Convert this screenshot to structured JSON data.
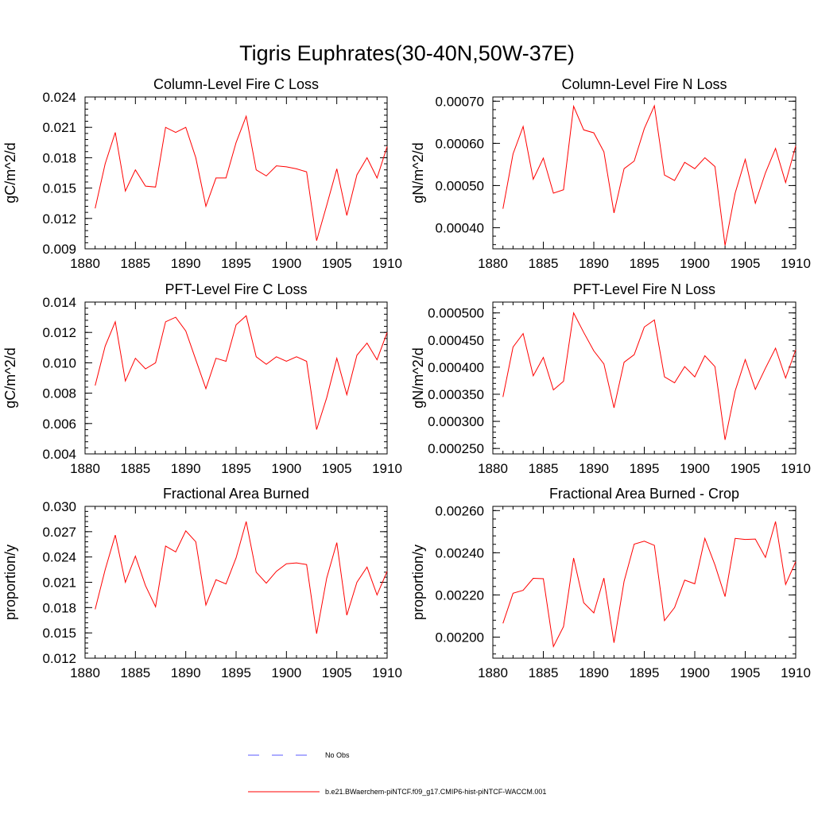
{
  "figure": {
    "title": "Tigris Euphrates(30-40N,50W-37E)"
  },
  "legend": {
    "entries": [
      {
        "label": "No Obs",
        "color": "#5a5aff",
        "style": "dashed"
      },
      {
        "label": "b.e21.BWaerchem-piNTCF.f09_g17.CMIP6-hist-piNTCF-WACCM.001",
        "color": "#ff0000",
        "style": "solid"
      }
    ]
  },
  "chart_data": [
    {
      "type": "line",
      "title": "Column-Level Fire C Loss",
      "ylabel": "gC/m^2/d",
      "xlim": [
        1880,
        1910
      ],
      "ylim": [
        0.009,
        0.024
      ],
      "xticks": [
        "1880",
        "1885",
        "1890",
        "1895",
        "1900",
        "1905",
        "1910"
      ],
      "yticks": [
        "0.009",
        "0.012",
        "0.015",
        "0.018",
        "0.021",
        "0.024"
      ],
      "series": [
        {
          "color": "#ff0000",
          "x": [
            1881,
            1882,
            1883,
            1884,
            1885,
            1886,
            1887,
            1888,
            1889,
            1890,
            1891,
            1892,
            1893,
            1894,
            1895,
            1896,
            1897,
            1898,
            1899,
            1900,
            1901,
            1902,
            1903,
            1904,
            1905,
            1906,
            1907,
            1908,
            1909,
            1910
          ],
          "values": [
            0.013,
            0.0174,
            0.0205,
            0.0147,
            0.0168,
            0.0152,
            0.0151,
            0.021,
            0.0205,
            0.021,
            0.018,
            0.0132,
            0.016,
            0.016,
            0.0195,
            0.0221,
            0.0168,
            0.0162,
            0.0172,
            0.0171,
            0.0169,
            0.0166,
            0.0098,
            0.0133,
            0.0169,
            0.0123,
            0.0163,
            0.018,
            0.016,
            0.0191
          ]
        }
      ]
    },
    {
      "type": "line",
      "title": "Column-Level Fire N Loss",
      "ylabel": "gN/m^2/d",
      "xlim": [
        1880,
        1910
      ],
      "ylim": [
        0.00035,
        0.00071
      ],
      "xticks": [
        "1880",
        "1885",
        "1890",
        "1895",
        "1900",
        "1905",
        "1910"
      ],
      "yticks": [
        "0.00040",
        "0.00050",
        "0.00060",
        "0.00070"
      ],
      "series": [
        {
          "color": "#ff0000",
          "x": [
            1881,
            1882,
            1883,
            1884,
            1885,
            1886,
            1887,
            1888,
            1889,
            1890,
            1891,
            1892,
            1893,
            1894,
            1895,
            1896,
            1897,
            1898,
            1899,
            1900,
            1901,
            1902,
            1903,
            1904,
            1905,
            1906,
            1907,
            1908,
            1909,
            1910
          ],
          "values": [
            0.000445,
            0.000575,
            0.00064,
            0.000515,
            0.000565,
            0.000482,
            0.00049,
            0.000688,
            0.000632,
            0.000625,
            0.00058,
            0.000435,
            0.00054,
            0.000558,
            0.000635,
            0.000689,
            0.000525,
            0.000512,
            0.000555,
            0.00054,
            0.000566,
            0.000545,
            0.000358,
            0.000482,
            0.000562,
            0.000458,
            0.00053,
            0.000588,
            0.000507,
            0.000594
          ]
        }
      ]
    },
    {
      "type": "line",
      "title": "PFT-Level Fire C Loss",
      "ylabel": "gC/m^2/d",
      "xlim": [
        1880,
        1910
      ],
      "ylim": [
        0.004,
        0.014
      ],
      "xticks": [
        "1880",
        "1885",
        "1890",
        "1895",
        "1900",
        "1905",
        "1910"
      ],
      "yticks": [
        "0.004",
        "0.006",
        "0.008",
        "0.010",
        "0.012",
        "0.014"
      ],
      "series": [
        {
          "color": "#ff0000",
          "x": [
            1881,
            1882,
            1883,
            1884,
            1885,
            1886,
            1887,
            1888,
            1889,
            1890,
            1891,
            1892,
            1893,
            1894,
            1895,
            1896,
            1897,
            1898,
            1899,
            1900,
            1901,
            1902,
            1903,
            1904,
            1905,
            1906,
            1907,
            1908,
            1909,
            1910
          ],
          "values": [
            0.0085,
            0.0111,
            0.0127,
            0.0088,
            0.0103,
            0.0096,
            0.01,
            0.0127,
            0.013,
            0.0121,
            0.0102,
            0.0083,
            0.0103,
            0.0101,
            0.0125,
            0.0131,
            0.0104,
            0.0099,
            0.0104,
            0.0101,
            0.0104,
            0.0101,
            0.0056,
            0.0077,
            0.0103,
            0.0079,
            0.0105,
            0.0113,
            0.0102,
            0.012
          ]
        }
      ]
    },
    {
      "type": "line",
      "title": "PFT-Level Fire N Loss",
      "ylabel": "gN/m^2/d",
      "xlim": [
        1880,
        1910
      ],
      "ylim": [
        0.00024,
        0.00052
      ],
      "xticks": [
        "1880",
        "1885",
        "1890",
        "1895",
        "1900",
        "1905",
        "1910"
      ],
      "yticks": [
        "0.000250",
        "0.000300",
        "0.000350",
        "0.000400",
        "0.000450",
        "0.000500"
      ],
      "series": [
        {
          "color": "#ff0000",
          "x": [
            1881,
            1882,
            1883,
            1884,
            1885,
            1886,
            1887,
            1888,
            1889,
            1890,
            1891,
            1892,
            1893,
            1894,
            1895,
            1896,
            1897,
            1898,
            1899,
            1900,
            1901,
            1902,
            1903,
            1904,
            1905,
            1906,
            1907,
            1908,
            1909,
            1910
          ],
          "values": [
            0.000345,
            0.000437,
            0.000462,
            0.000384,
            0.000418,
            0.000358,
            0.000374,
            0.0005,
            0.000464,
            0.00043,
            0.000406,
            0.000325,
            0.000409,
            0.000423,
            0.000474,
            0.000487,
            0.000382,
            0.000371,
            0.000401,
            0.000382,
            0.000421,
            0.000401,
            0.000266,
            0.000356,
            0.000414,
            0.000359,
            0.000398,
            0.000435,
            0.00038,
            0.000432
          ]
        }
      ]
    },
    {
      "type": "line",
      "title": "Fractional Area Burned",
      "ylabel": "proportion/y",
      "xlim": [
        1880,
        1910
      ],
      "ylim": [
        0.012,
        0.03
      ],
      "xticks": [
        "1880",
        "1885",
        "1890",
        "1895",
        "1900",
        "1905",
        "1910"
      ],
      "yticks": [
        "0.012",
        "0.015",
        "0.018",
        "0.021",
        "0.024",
        "0.027",
        "0.030"
      ],
      "series": [
        {
          "color": "#ff0000",
          "x": [
            1881,
            1882,
            1883,
            1884,
            1885,
            1886,
            1887,
            1888,
            1889,
            1890,
            1891,
            1892,
            1893,
            1894,
            1895,
            1896,
            1897,
            1898,
            1899,
            1900,
            1901,
            1902,
            1903,
            1904,
            1905,
            1906,
            1907,
            1908,
            1909,
            1910
          ],
          "values": [
            0.0178,
            0.0225,
            0.0266,
            0.021,
            0.0241,
            0.0206,
            0.0181,
            0.0253,
            0.0246,
            0.0271,
            0.0258,
            0.0183,
            0.0213,
            0.0208,
            0.0239,
            0.0282,
            0.0222,
            0.0209,
            0.0223,
            0.0232,
            0.0233,
            0.0231,
            0.0149,
            0.0215,
            0.0257,
            0.0171,
            0.021,
            0.0228,
            0.0195,
            0.0223
          ]
        }
      ]
    },
    {
      "type": "line",
      "title": "Fractional Area Burned - Crop",
      "ylabel": "proportion/y",
      "xlim": [
        1880,
        1910
      ],
      "ylim": [
        0.0019,
        0.00262
      ],
      "xticks": [
        "1880",
        "1885",
        "1890",
        "1895",
        "1900",
        "1905",
        "1910"
      ],
      "yticks": [
        "0.00200",
        "0.00220",
        "0.00240",
        "0.00260"
      ],
      "series": [
        {
          "color": "#ff0000",
          "x": [
            1881,
            1882,
            1883,
            1884,
            1885,
            1886,
            1887,
            1888,
            1889,
            1890,
            1891,
            1892,
            1893,
            1894,
            1895,
            1896,
            1897,
            1898,
            1899,
            1900,
            1901,
            1902,
            1903,
            1904,
            1905,
            1906,
            1907,
            1908,
            1909,
            1910
          ],
          "values": [
            0.002065,
            0.002208,
            0.002222,
            0.002279,
            0.002277,
            0.001955,
            0.00205,
            0.002375,
            0.002163,
            0.002115,
            0.00228,
            0.001973,
            0.002265,
            0.002441,
            0.002455,
            0.002435,
            0.002078,
            0.00214,
            0.00227,
            0.002253,
            0.002468,
            0.002342,
            0.002192,
            0.002468,
            0.002463,
            0.002465,
            0.002378,
            0.002548,
            0.00225,
            0.002358
          ]
        }
      ]
    }
  ]
}
